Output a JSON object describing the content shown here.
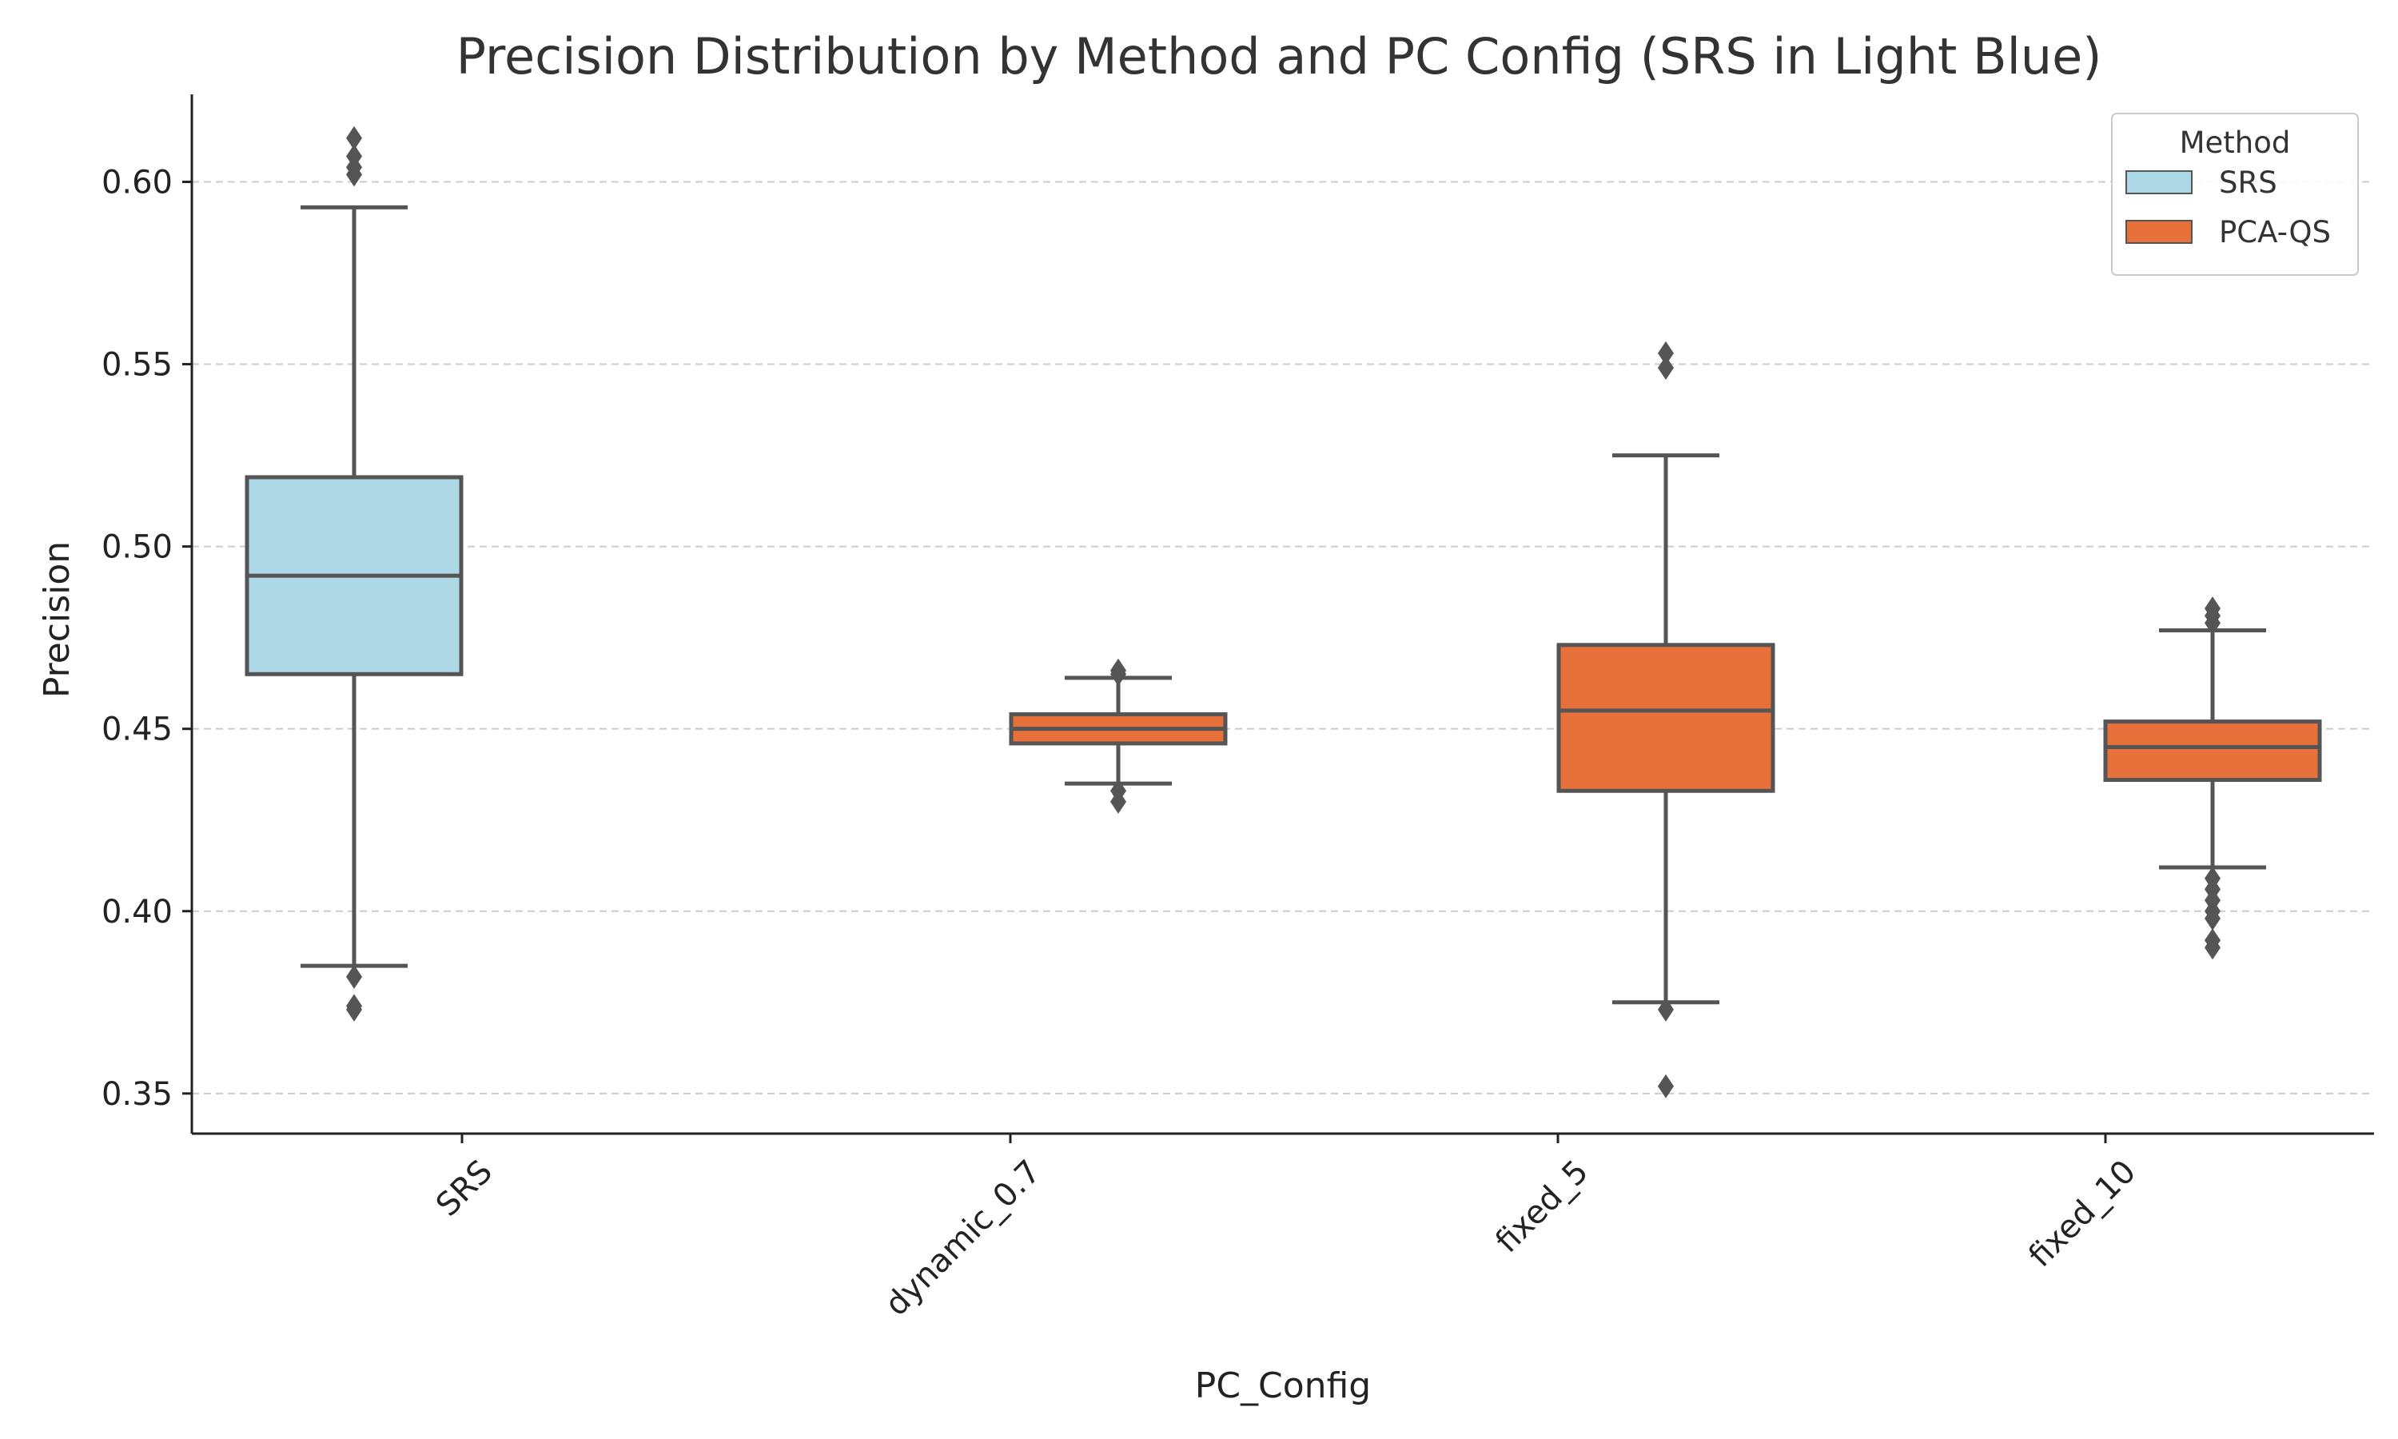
{
  "chart_data": {
    "type": "box",
    "title": "Precision Distribution by Method and PC Config (SRS in Light Blue)",
    "xlabel": "PC_Config",
    "ylabel": "Precision",
    "ylim": [
      0.339,
      0.624
    ],
    "yticks": [
      0.35,
      0.4,
      0.45,
      0.5,
      0.55,
      0.6
    ],
    "ytick_labels": [
      "0.35",
      "0.40",
      "0.45",
      "0.50",
      "0.55",
      "0.60"
    ],
    "grid": "y-dashed",
    "categories": [
      "SRS",
      "dynamic_0.7",
      "fixed_5",
      "fixed_10"
    ],
    "legend": {
      "title": "Method",
      "position": "top-right",
      "entries": [
        {
          "label": "SRS",
          "color": "#add8e6"
        },
        {
          "label": "PCA-QS",
          "color": "#e8703a"
        }
      ]
    },
    "boxes": [
      {
        "category": "SRS",
        "method": "SRS",
        "whisker_low": 0.385,
        "q1": 0.465,
        "median": 0.492,
        "q3": 0.519,
        "whisker_high": 0.593,
        "outliers": [
          0.382,
          0.373,
          0.374,
          0.602,
          0.604,
          0.607,
          0.612
        ]
      },
      {
        "category": "dynamic_0.7",
        "method": "PCA-QS",
        "whisker_low": 0.435,
        "q1": 0.446,
        "median": 0.45,
        "q3": 0.454,
        "whisker_high": 0.464,
        "outliers": [
          0.465,
          0.466,
          0.433,
          0.43
        ]
      },
      {
        "category": "fixed_5",
        "method": "PCA-QS",
        "whisker_low": 0.375,
        "q1": 0.433,
        "median": 0.455,
        "q3": 0.473,
        "whisker_high": 0.525,
        "outliers": [
          0.549,
          0.553,
          0.373,
          0.352
        ]
      },
      {
        "category": "fixed_10",
        "method": "PCA-QS",
        "whisker_low": 0.412,
        "q1": 0.436,
        "median": 0.445,
        "q3": 0.452,
        "whisker_high": 0.477,
        "outliers": [
          0.479,
          0.481,
          0.483,
          0.409,
          0.406,
          0.403,
          0.4,
          0.398,
          0.392,
          0.39
        ]
      }
    ],
    "colors": {
      "SRS": "#add8e6",
      "PCA-QS": "#e8703a",
      "edge": "#555555",
      "grid": "#cccccc"
    }
  }
}
